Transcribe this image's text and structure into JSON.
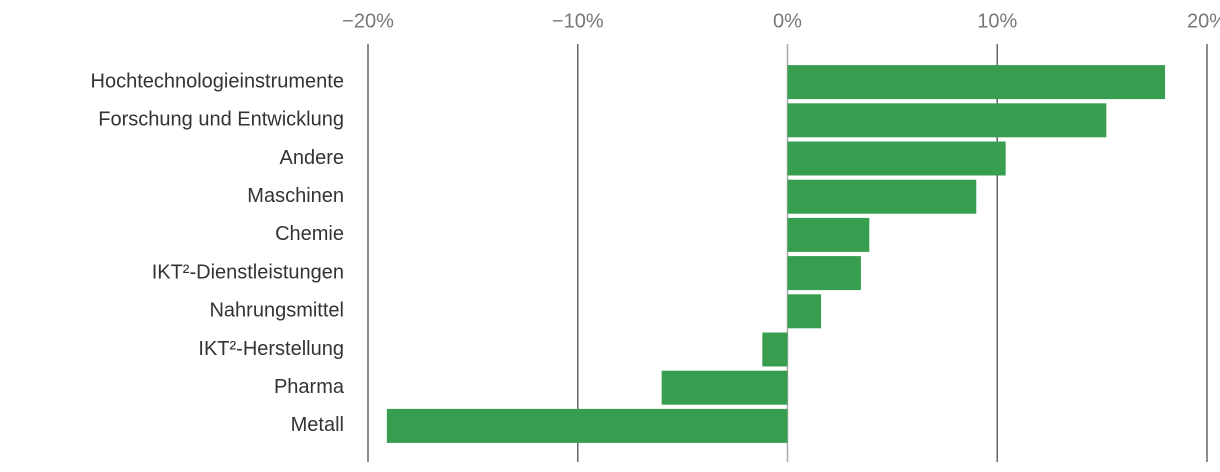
{
  "chart_data": {
    "type": "barh",
    "categories": [
      "Hochtechnologieinstrumente",
      "Forschung und Entwicklung",
      "Andere",
      "Maschinen",
      "Chemie",
      "IKT²-Dienstleistungen",
      "Nahrungsmittel",
      "IKT²-Herstellung",
      "Pharma",
      "Metall"
    ],
    "values": [
      18.0,
      15.2,
      10.4,
      9.0,
      3.9,
      3.5,
      1.6,
      -1.2,
      -6.0,
      -19.1
    ],
    "color": "#389e4f",
    "xlim": [
      -20,
      20
    ],
    "xticks": [
      {
        "value": -20,
        "label": "−20%"
      },
      {
        "value": -10,
        "label": "−10%"
      },
      {
        "value": 0,
        "label": "0%"
      },
      {
        "value": 10,
        "label": "10%"
      },
      {
        "value": 20,
        "label": "20%"
      }
    ],
    "grid": true
  }
}
